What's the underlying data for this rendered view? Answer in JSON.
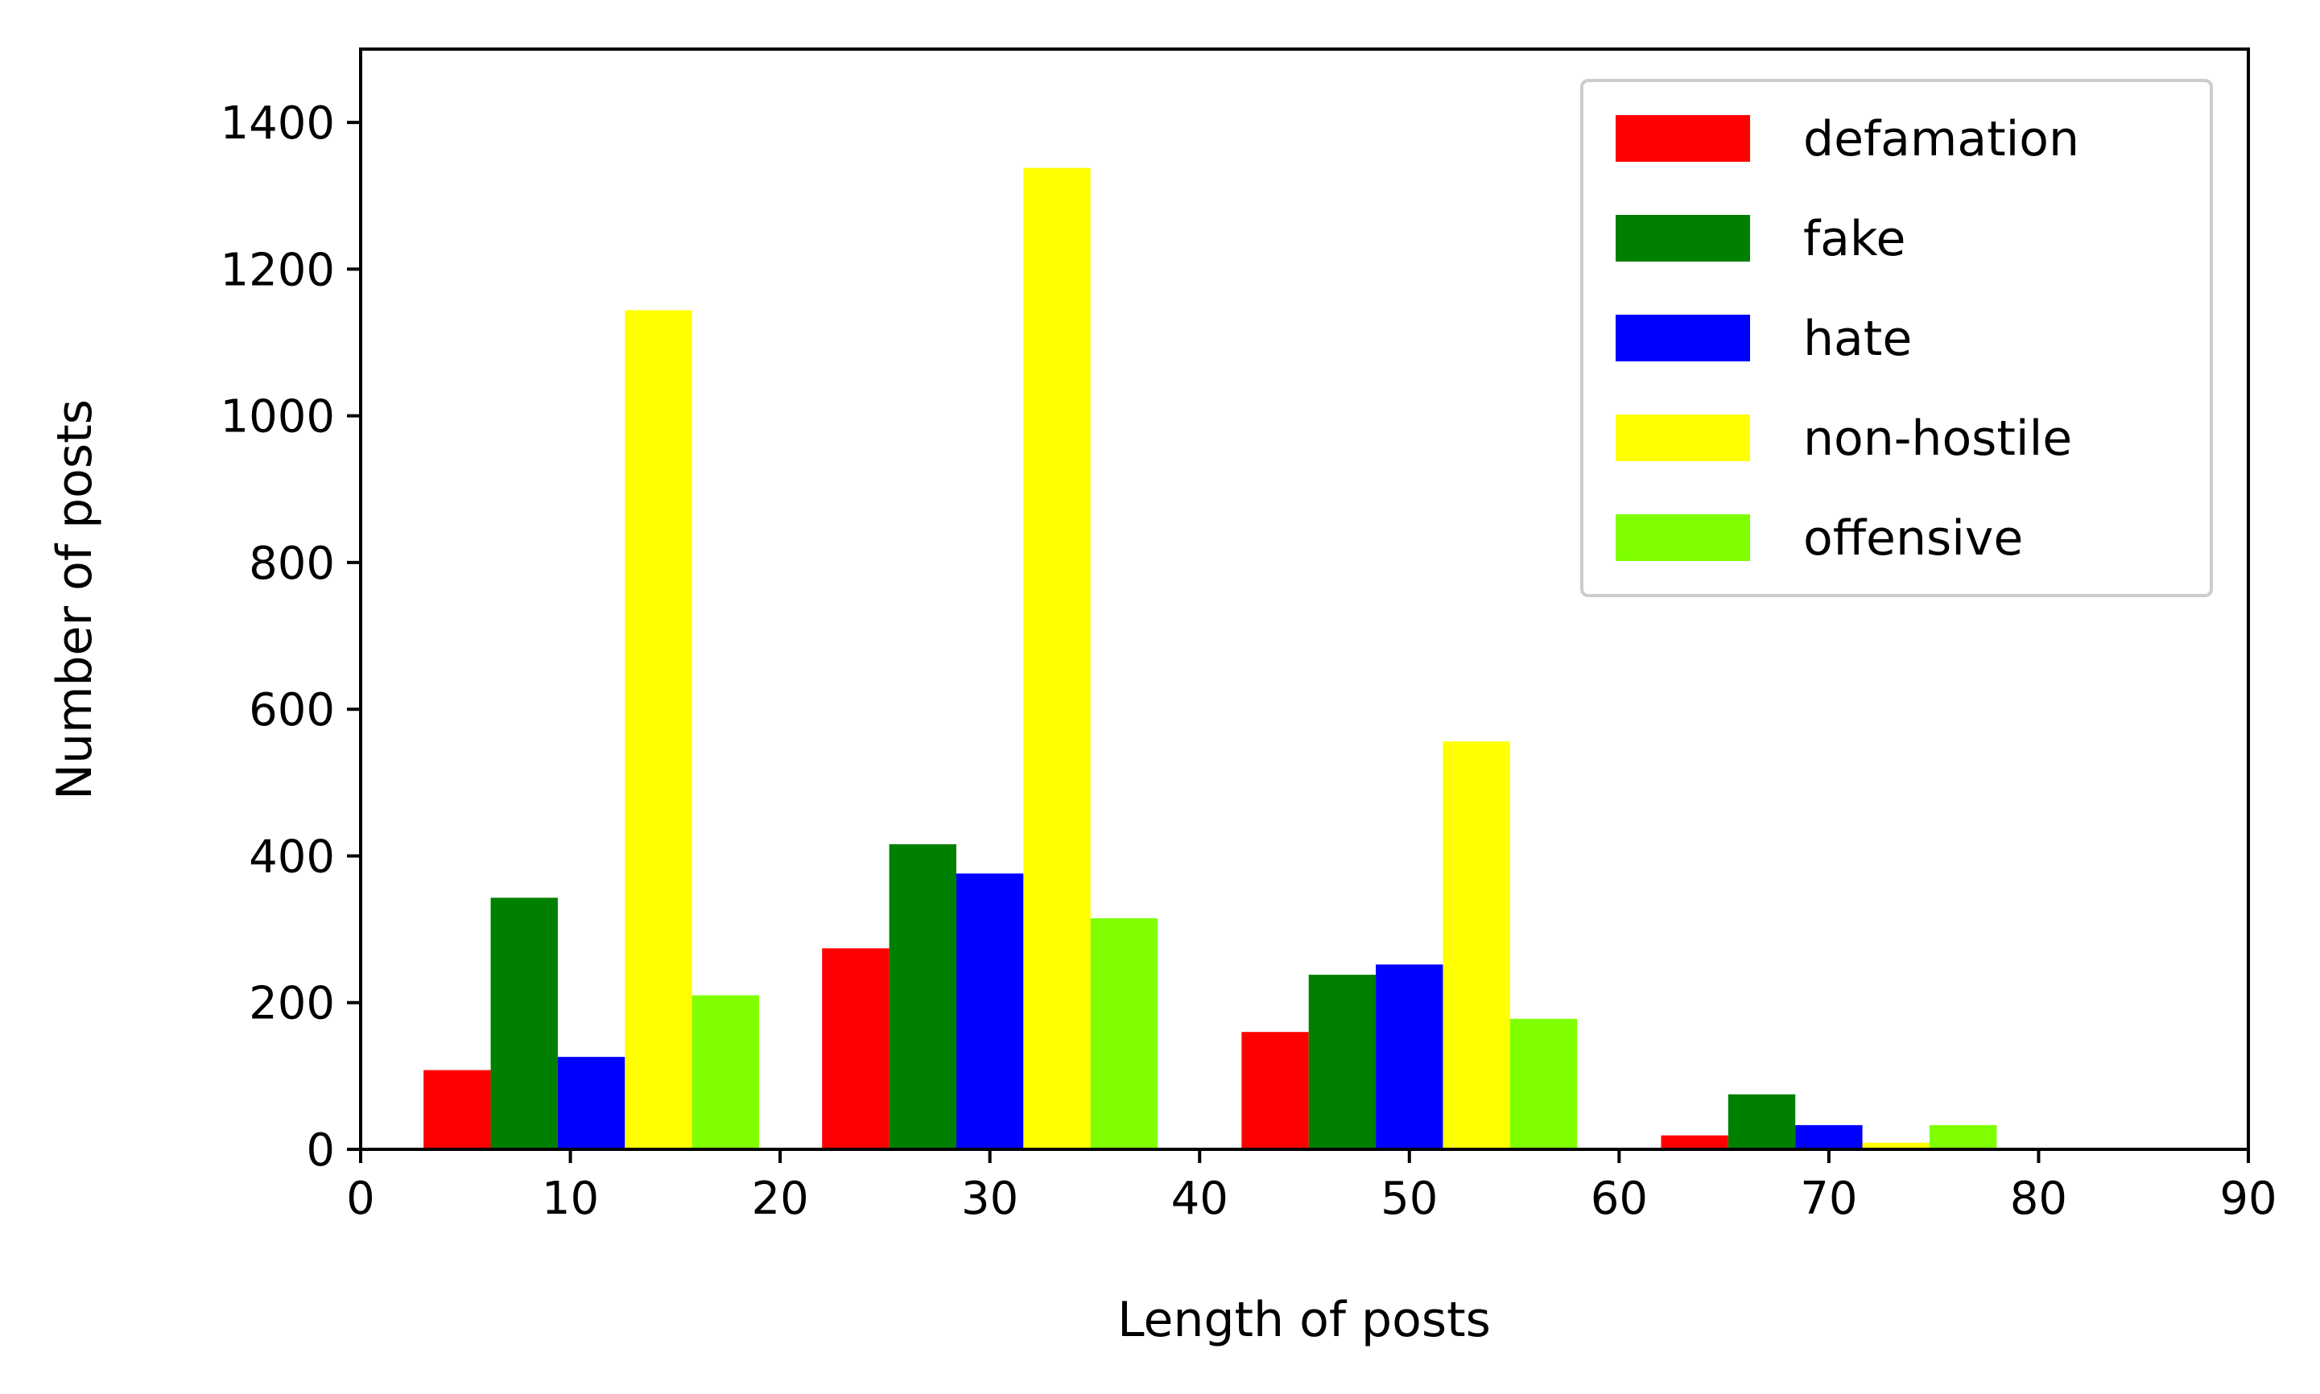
{
  "chart_data": {
    "type": "bar",
    "title": "",
    "xlabel": "Length of posts",
    "ylabel": "Number of posts",
    "xlim": [
      0,
      90
    ],
    "ylim": [
      0,
      1500
    ],
    "xticks": [
      0,
      10,
      20,
      30,
      40,
      50,
      60,
      70,
      80,
      90
    ],
    "yticks": [
      0,
      200,
      400,
      600,
      800,
      1000,
      1200,
      1400
    ],
    "grid": false,
    "legend_position": "top-right",
    "bins": [
      {
        "x_start": 3,
        "x_end": 19
      },
      {
        "x_start": 22,
        "x_end": 38
      },
      {
        "x_start": 42,
        "x_end": 58
      },
      {
        "x_start": 62,
        "x_end": 78
      }
    ],
    "series": [
      {
        "name": "defamation",
        "color": "#ff0000",
        "values": [
          108,
          274,
          160,
          19
        ]
      },
      {
        "name": "fake",
        "color": "#008000",
        "values": [
          343,
          416,
          238,
          75
        ]
      },
      {
        "name": "hate",
        "color": "#0000ff",
        "values": [
          126,
          376,
          252,
          33
        ]
      },
      {
        "name": "non-hostile",
        "color": "#ffff00",
        "values": [
          1144,
          1338,
          556,
          9
        ]
      },
      {
        "name": "offensive",
        "color": "#7fff00",
        "values": [
          210,
          315,
          178,
          33
        ]
      }
    ]
  }
}
